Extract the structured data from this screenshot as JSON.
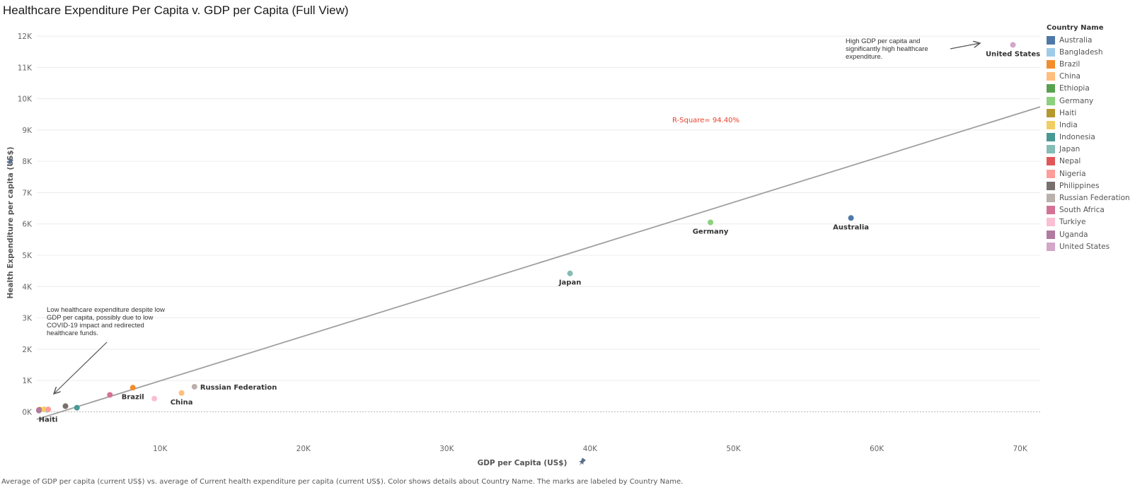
{
  "page": {
    "title": "Healthcare Expenditure Per Capita v. GDP per Capita (Full View)",
    "footer": "Average of GDP per capita (current US$) vs. average of Current health expenditure per capita (current US$).  Color shows details about Country Name.  The marks are labeled by Country Name.",
    "r_square_label": "R-Square= 94.40%",
    "annotation_low": "Low healthcare expenditure despite low GDP per capita, possibly due to low COVID-19 impact and redirected healthcare funds.",
    "annotation_high": "High GDP per capita and significantly high healthcare expenditure.",
    "pin_icon": "pin-icon"
  },
  "chart_data": {
    "type": "scatter",
    "xlabel": "GDP per Capita (US$)",
    "ylabel": "Health Expenditure per capita (US$)",
    "x_ticks": [
      "10K",
      "20K",
      "30K",
      "40K",
      "50K",
      "60K",
      "70K"
    ],
    "y_ticks": [
      "0K",
      "1K",
      "2K",
      "3K",
      "4K",
      "5K",
      "6K",
      "7K",
      "8K",
      "9K",
      "10K",
      "11K",
      "12K"
    ],
    "xlim": [
      1400,
      71400
    ],
    "ylim": [
      -850,
      12250
    ],
    "grid": true,
    "legend_title": "Country Name",
    "legend_position": "right",
    "trend_line": {
      "x0": 1400,
      "y0": -240,
      "x1": 71400,
      "y1": 9740
    },
    "points": [
      {
        "name": "Australia",
        "x": 58200,
        "y": 6190,
        "color": "#4e79a7",
        "label": "Australia"
      },
      {
        "name": "Bangladesh",
        "x": 2100,
        "y": 60,
        "color": "#a0cbe8",
        "label": ""
      },
      {
        "name": "Brazil",
        "x": 8100,
        "y": 770,
        "color": "#f28e2b",
        "label": "Brazil"
      },
      {
        "name": "China",
        "x": 11500,
        "y": 600,
        "color": "#ffbe7d",
        "label": "China"
      },
      {
        "name": "Ethiopia",
        "x": 1200,
        "y": 40,
        "color": "#59a14f",
        "label": ""
      },
      {
        "name": "Germany",
        "x": 48400,
        "y": 6050,
        "color": "#8cd17d",
        "label": "Germany"
      },
      {
        "name": "Haiti",
        "x": 1600,
        "y": 65,
        "color": "#b6992d",
        "label": "Haiti"
      },
      {
        "name": "India",
        "x": 1900,
        "y": 80,
        "color": "#f1ce63",
        "label": ""
      },
      {
        "name": "Indonesia",
        "x": 4200,
        "y": 130,
        "color": "#499894",
        "label": ""
      },
      {
        "name": "Japan",
        "x": 38600,
        "y": 4420,
        "color": "#86bcb6",
        "label": "Japan"
      },
      {
        "name": "Nepal",
        "x": 1250,
        "y": 55,
        "color": "#e15759",
        "label": ""
      },
      {
        "name": "Nigeria",
        "x": 2200,
        "y": 75,
        "color": "#ff9d9a",
        "label": ""
      },
      {
        "name": "Philippines",
        "x": 3400,
        "y": 180,
        "color": "#79706e",
        "label": ""
      },
      {
        "name": "Russian Federation",
        "x": 12400,
        "y": 800,
        "color": "#bab0ac",
        "label": "Russian Federation"
      },
      {
        "name": "South Africa",
        "x": 6500,
        "y": 540,
        "color": "#d37295",
        "label": ""
      },
      {
        "name": "Turkiye",
        "x": 9600,
        "y": 420,
        "color": "#fabfd2",
        "label": ""
      },
      {
        "name": "Uganda",
        "x": 1000,
        "y": 40,
        "color": "#b07aa1",
        "label": ""
      },
      {
        "name": "United States",
        "x": 69500,
        "y": 11720,
        "color": "#d4a6c8",
        "label": "United States"
      }
    ]
  }
}
